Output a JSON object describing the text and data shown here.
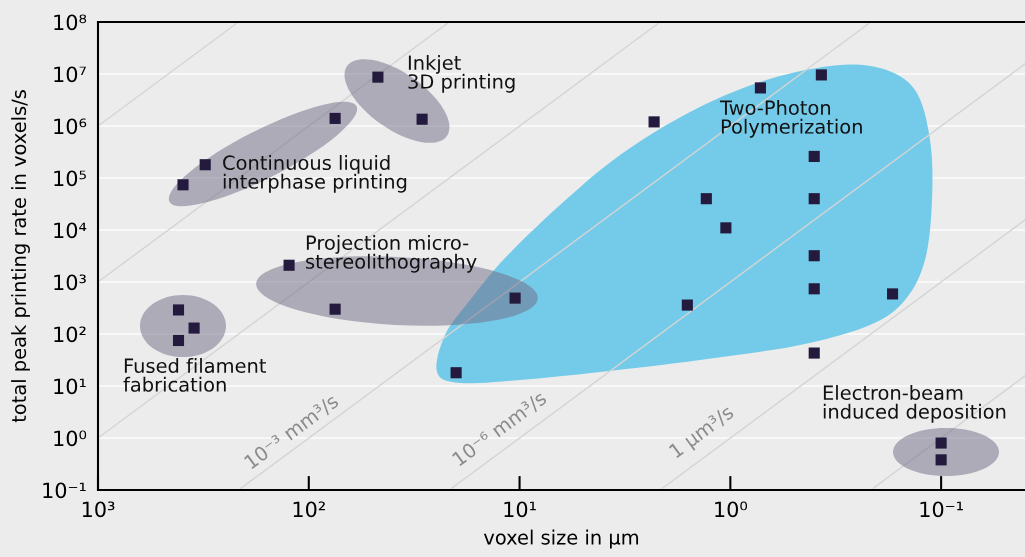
{
  "chart_data": {
    "type": "scatter",
    "xlabel": "voxel size in μm",
    "ylabel": "total peak printing rate in voxels/s",
    "log": "xy",
    "xlim": [
      1000,
      0.04
    ],
    "ylim": [
      0.1,
      100000000
    ],
    "xticks": [
      {
        "value": 1000,
        "label": "10³"
      },
      {
        "value": 100,
        "label": "10²"
      },
      {
        "value": 10,
        "label": "10¹"
      },
      {
        "value": 1,
        "label": "10⁰"
      },
      {
        "value": 0.1,
        "label": "10⁻¹"
      }
    ],
    "yticks": [
      {
        "value": 0.1,
        "label": "10⁻¹"
      },
      {
        "value": 1,
        "label": "10⁰"
      },
      {
        "value": 10,
        "label": "10¹"
      },
      {
        "value": 100,
        "label": "10²"
      },
      {
        "value": 1000,
        "label": "10³"
      },
      {
        "value": 10000,
        "label": "10⁴"
      },
      {
        "value": 100000,
        "label": "10⁵"
      },
      {
        "value": 1000000,
        "label": "10⁶"
      },
      {
        "value": 10000000,
        "label": "10⁷"
      },
      {
        "value": 100000000,
        "label": "10⁸"
      }
    ],
    "grid": "y",
    "marker": "square",
    "series": [
      {
        "type": "line",
        "marker": "none",
        "color": "#d4d4d4",
        "x": [
          0.21,
          0.04
        ],
        "values": [
          0.108,
          15.6
        ]
      },
      {
        "type": "line",
        "marker": "none",
        "color": "#d4d4d4",
        "x": [
          2.1,
          0.04
        ],
        "values": [
          0.108,
          15600
        ]
      },
      {
        "type": "line",
        "marker": "none",
        "color": "#d4d4d4",
        "x": [
          21,
          0.04
        ],
        "values": [
          0.108,
          15600000
        ]
      },
      {
        "type": "line",
        "marker": "none",
        "color": "#d4d4d4",
        "x": [
          210,
          0.22
        ],
        "values": [
          0.108,
          94000000
        ]
      },
      {
        "type": "line",
        "marker": "none",
        "color": "#d4d4d4",
        "x": [
          1000,
          2.2
        ],
        "values": [
          1,
          94000000
        ]
      },
      {
        "type": "line",
        "marker": "none",
        "color": "#d4d4d4",
        "x": [
          1000,
          22
        ],
        "values": [
          1000,
          94000000
        ]
      },
      {
        "type": "line",
        "marker": "none",
        "color": "#d4d4d4",
        "x": [
          1000,
          220
        ],
        "values": [
          1000000,
          94000000
        ]
      },
      {
        "color": "#231a3d",
        "x": [
          47,
          75,
          29,
          310,
          395,
          124,
          75,
          415,
          350,
          415,
          20,
          10.5,
          1.6,
          0.4,
          0.17,
          0.4,
          0.1,
          0.1,
          0.37,
          0.72,
          2.3,
          0.4,
          1.3,
          0.4,
          1.05,
          0.4
        ],
        "values": [
          8700000,
          1400000,
          1350000,
          180000,
          74000,
          2100,
          300,
          290,
          130,
          75,
          18,
          490,
          360,
          740,
          590,
          43,
          0.8,
          0.38,
          9600000,
          5400000,
          1200000,
          260000,
          40000,
          40000,
          11000,
          3200
        ]
      }
    ],
    "annotations": [
      "Inkjet\n3D printing",
      "Continuous liquid\ninterphase printing",
      "Projection micro-\nstereolithography",
      "Fused filament\nfabrication",
      "Two-Photon\nPolymerization",
      "Electron-beam\ninduced deposition",
      "10⁻³ mm³/s",
      "10⁻⁶ mm³/s",
      "1 μm³/s"
    ]
  }
}
